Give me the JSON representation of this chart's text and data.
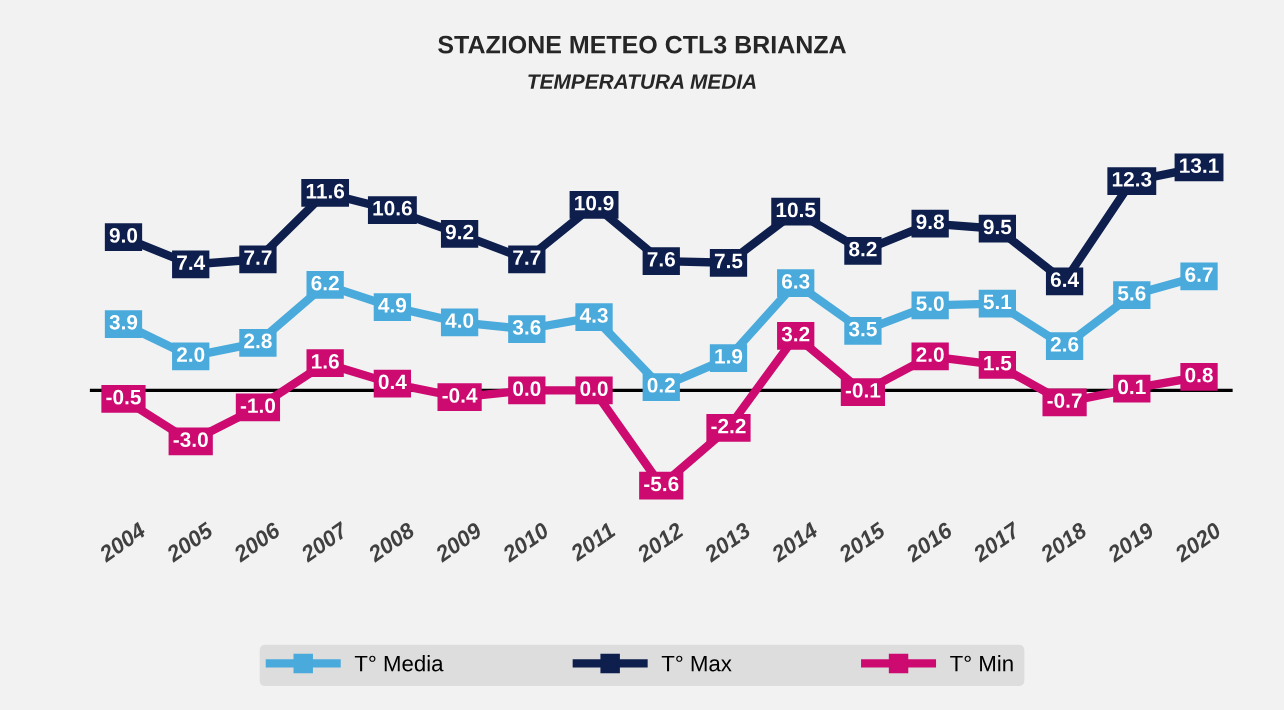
{
  "chart_data": {
    "type": "line",
    "title": "STAZIONE METEO CTL3 BRIANZA",
    "subtitle": "TEMPERATURA MEDIA",
    "categories": [
      "2004",
      "2005",
      "2006",
      "2007",
      "2008",
      "2009",
      "2010",
      "2011",
      "2012",
      "2013",
      "2014",
      "2015",
      "2016",
      "2017",
      "2018",
      "2019",
      "2020"
    ],
    "series": [
      {
        "name": "T° Media",
        "color": "#4aaadb",
        "values": [
          3.9,
          2.0,
          2.8,
          6.2,
          4.9,
          4.0,
          3.6,
          4.3,
          0.2,
          1.9,
          6.3,
          3.5,
          5.0,
          5.1,
          2.6,
          5.6,
          6.7
        ],
        "value_labels": [
          "3.9",
          "2.0",
          "2.8",
          "6.2",
          "4.9",
          "4.0",
          "3.6",
          "4.3",
          "0.2",
          "1.9",
          "6.3",
          "3.5",
          "5.0",
          "5.1",
          "2.6",
          "5.6",
          "6.7"
        ]
      },
      {
        "name": "T° Max",
        "color": "#0e1f4d",
        "values": [
          9.0,
          7.4,
          7.7,
          11.6,
          10.6,
          9.2,
          7.7,
          10.9,
          7.6,
          7.5,
          10.5,
          8.2,
          9.8,
          9.5,
          6.4,
          12.3,
          13.1
        ],
        "value_labels": [
          "9.0",
          "7.4",
          "7.7",
          "11.6",
          "10.6",
          "9.2",
          "7.7",
          "10.9",
          "7.6",
          "7.5",
          "10.5",
          "8.2",
          "9.8",
          "9.5",
          "6.4",
          "12.3",
          "13.1"
        ]
      },
      {
        "name": "T° Min",
        "color": "#cc0a70",
        "values": [
          -0.5,
          -3.0,
          -1.0,
          1.6,
          0.4,
          -0.4,
          0.0,
          0.0,
          -5.6,
          -2.2,
          3.2,
          -0.1,
          2.0,
          1.5,
          -0.7,
          0.1,
          0.8
        ],
        "value_labels": [
          "-0.5",
          "-3.0",
          "-1.0",
          "1.6",
          "0.4",
          "-0.4",
          "0.0",
          "0.0",
          "-5.6",
          "-2.2",
          "3.2",
          "-0.1",
          "2.0",
          "1.5",
          "-0.7",
          "0.1",
          "0.8"
        ]
      }
    ],
    "tick_labels": "x",
    "marker": "square",
    "line_style": "solid",
    "grid": false,
    "legend": "bottom",
    "ref_lines": [
      {
        "axis": "y",
        "value": 0,
        "color": "#000000"
      }
    ]
  }
}
